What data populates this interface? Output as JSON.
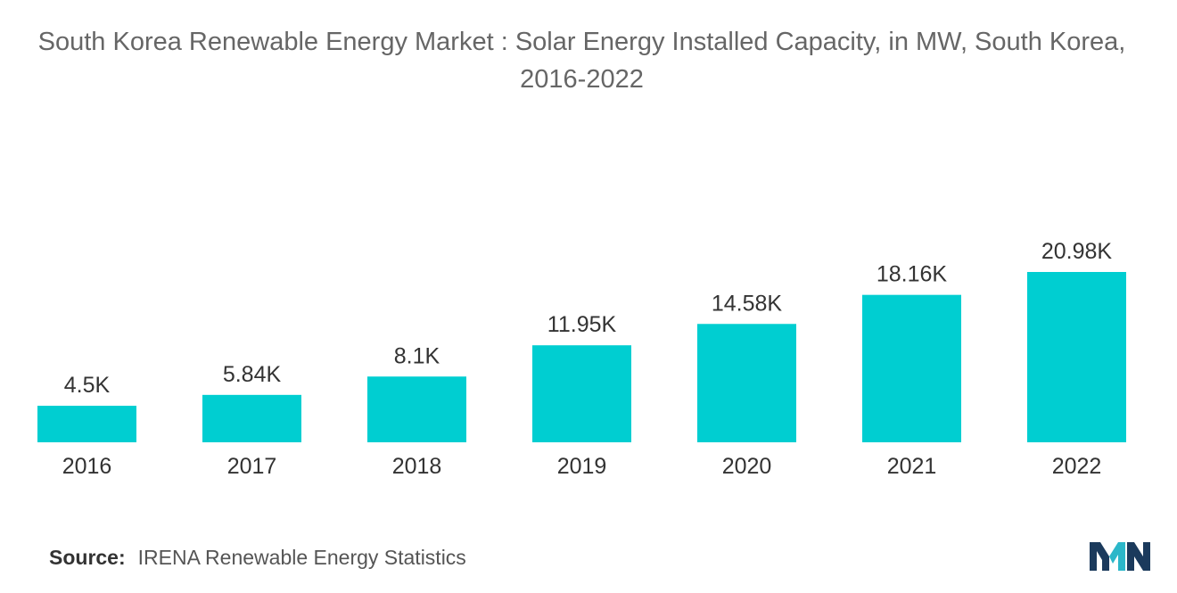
{
  "chart_data": {
    "type": "bar",
    "title": "South Korea Renewable Energy Market : Solar Energy Installed Capacity, in MW, South Korea, 2016-2022",
    "xlabel": "",
    "ylabel": "",
    "categories": [
      "2016",
      "2017",
      "2018",
      "2019",
      "2020",
      "2021",
      "2022"
    ],
    "values": [
      4500,
      5840,
      8100,
      11950,
      14580,
      18160,
      20980
    ],
    "value_labels": [
      "4.5K",
      "5.84K",
      "8.1K",
      "11.95K",
      "14.58K",
      "18.16K",
      "20.98K"
    ],
    "ylim": [
      0,
      20980
    ],
    "grid": false,
    "legend": "none",
    "bar_color": "#00CED1"
  },
  "source": {
    "label": "Source:",
    "text": "IRENA Renewable Energy Statistics"
  },
  "logo": {
    "icon": "mordor-intelligence-logo-icon",
    "colors": [
      "#1b3a5c",
      "#2bb7c9"
    ]
  }
}
